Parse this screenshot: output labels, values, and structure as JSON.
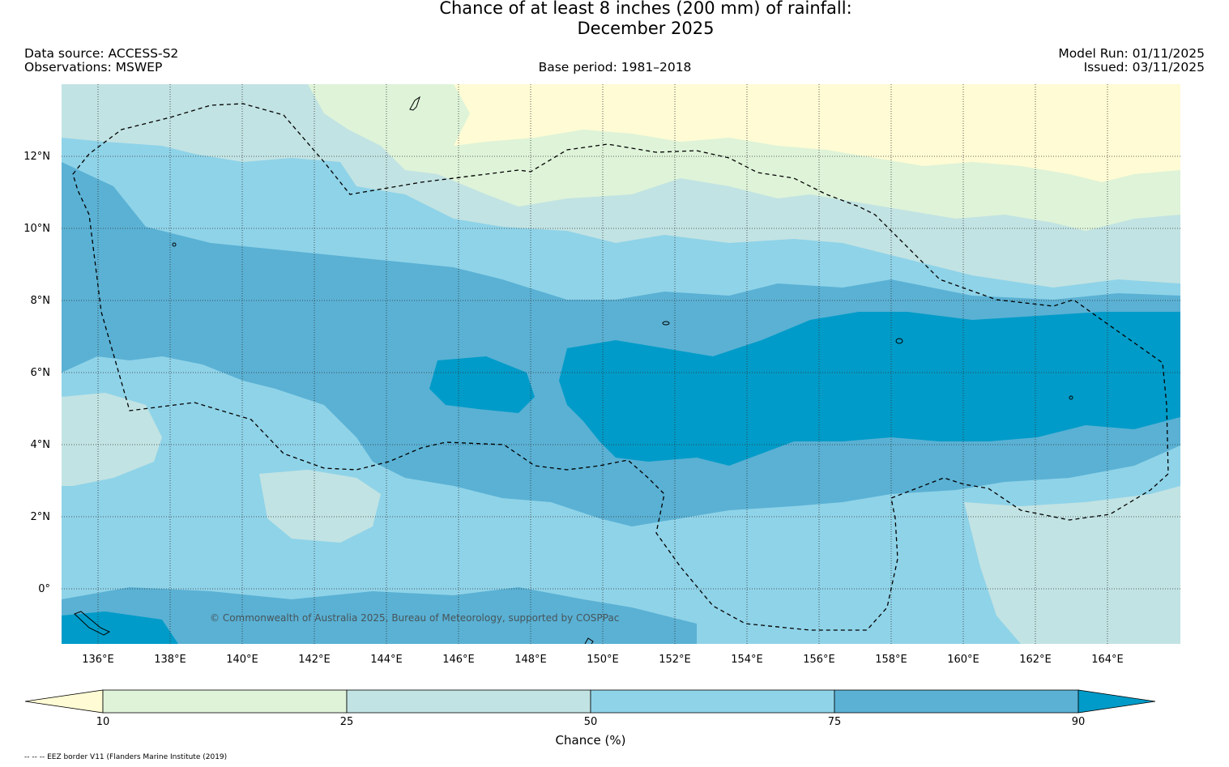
{
  "title": {
    "line1": "Chance of at least 8 inches (200  mm) of rainfall:",
    "line2": "December 2025"
  },
  "meta": {
    "data_source": "Data source: ACCESS-S2",
    "observations": "Observations: MSWEP",
    "base_period": "Base period: 1981–2018",
    "model_run": "Model Run: 01/11/2025",
    "issued": "Issued: 03/11/2025"
  },
  "map": {
    "lon_labels": [
      "136°E",
      "138°E",
      "140°E",
      "142°E",
      "144°E",
      "146°E",
      "148°E",
      "150°E",
      "152°E",
      "154°E",
      "156°E",
      "158°E",
      "160°E",
      "162°E",
      "164°E"
    ],
    "lat_labels": [
      "12°N",
      "10°N",
      "8°N",
      "6°N",
      "4°N",
      "2°N",
      "0°"
    ],
    "lon_range": [
      135,
      166
    ],
    "lat_range": [
      -1.5,
      14
    ],
    "credit": "© Commonwealth of Australia 2025, Bureau of Meteorology, supported by COSPPac"
  },
  "colorbar": {
    "title": "Chance (%)",
    "ticks": [
      "10",
      "25",
      "50",
      "75",
      "90"
    ],
    "bins": [
      {
        "range": "<10",
        "color": "#fffbd4"
      },
      {
        "range": "10-25",
        "color": "#def3d8"
      },
      {
        "range": "25-50",
        "color": "#c2e3e3"
      },
      {
        "range": "50-75",
        "color": "#8fd3e8"
      },
      {
        "range": "75-90",
        "color": "#5ab1d4"
      },
      {
        "range": ">90",
        "color": "#009bc8"
      }
    ]
  },
  "footnote": "-- -- -- EEZ border V11 (Flanders Marine Institute (2019)"
}
